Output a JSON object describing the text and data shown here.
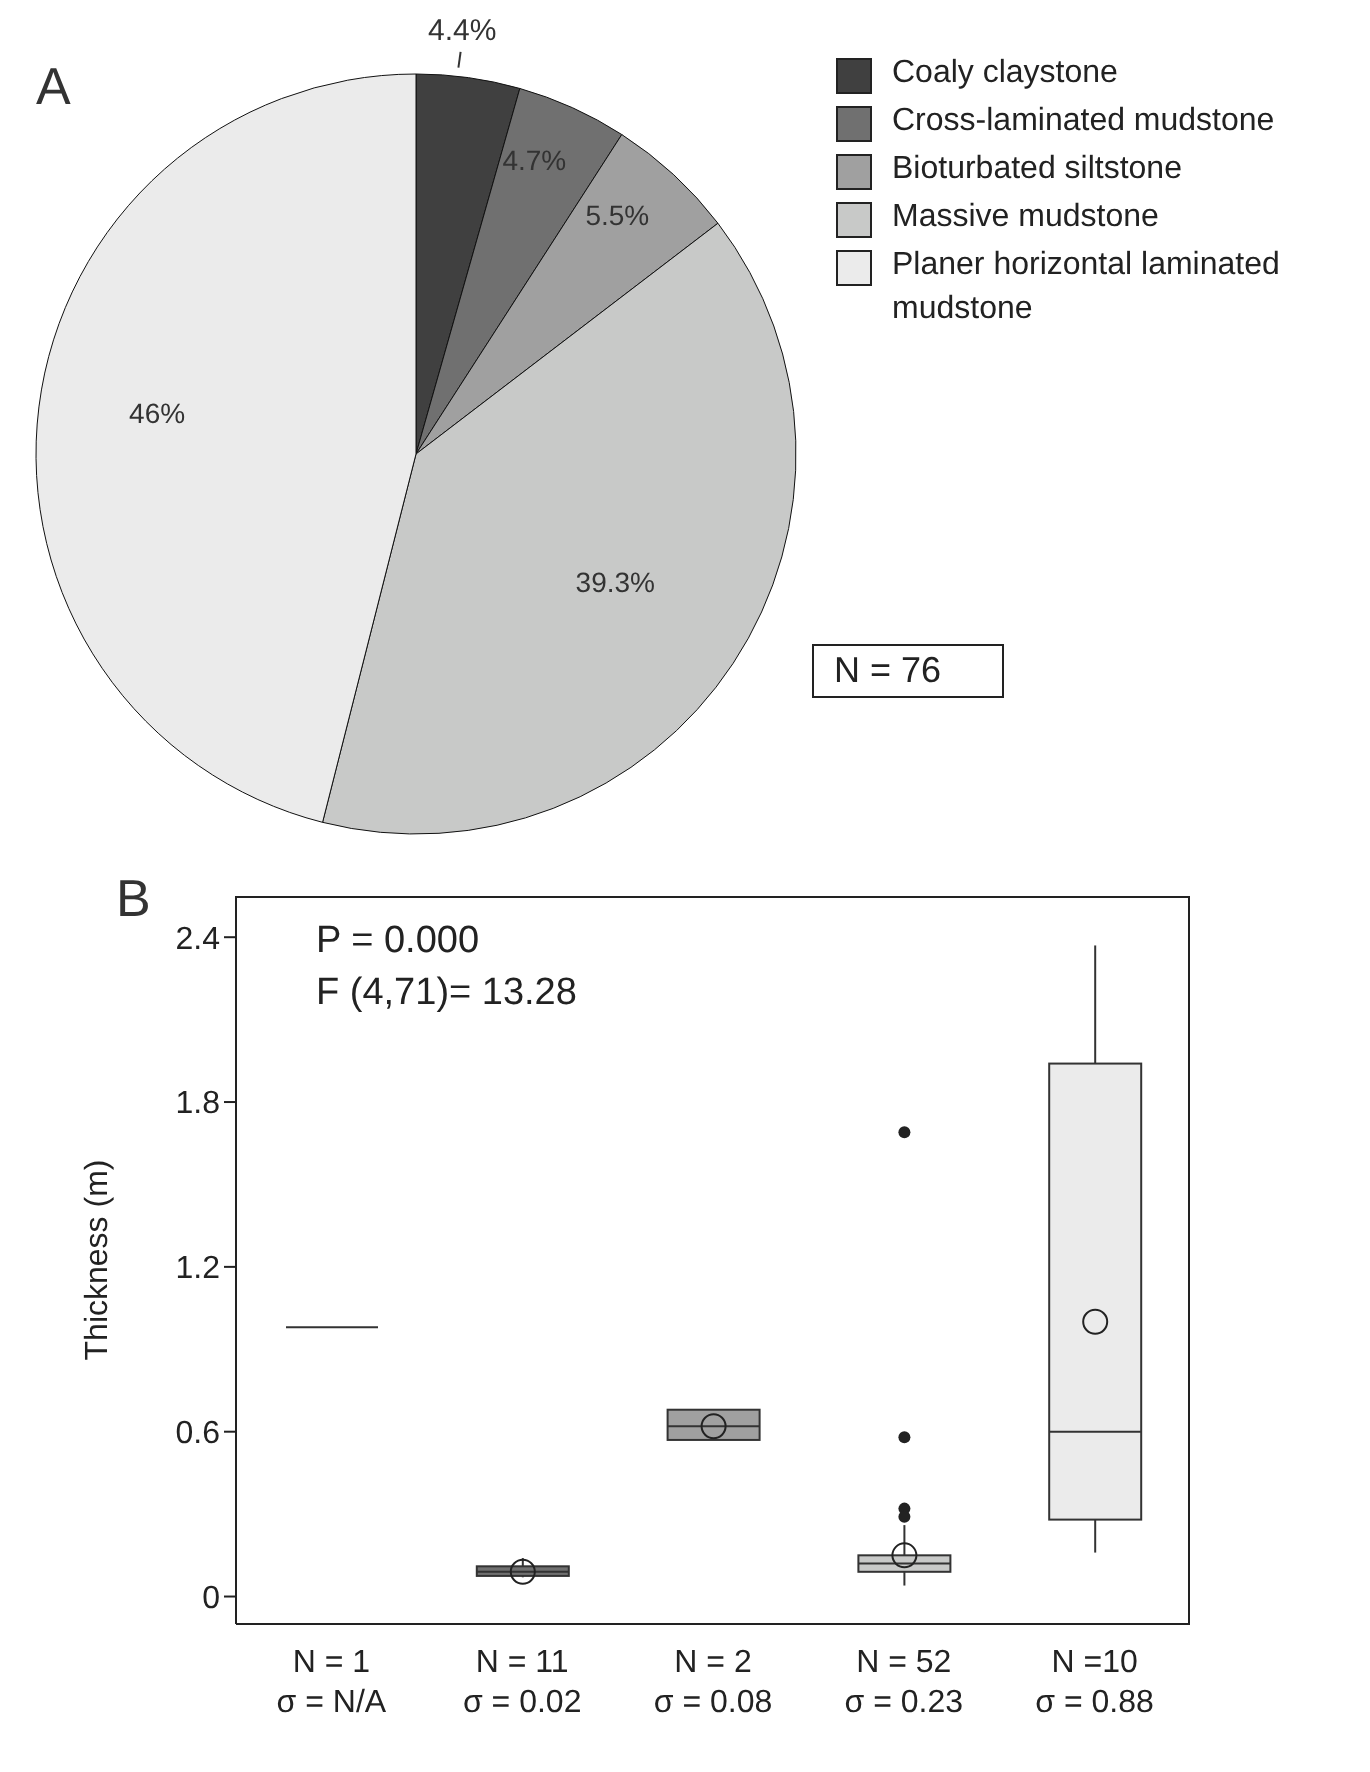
{
  "chart_data": [
    {
      "type": "pie",
      "title": "A",
      "categories": [
        "Coaly claystone",
        "Cross-laminated mudstone",
        "Bioturbated siltstone",
        "Massive mudstone",
        "Planer horizontal laminated mudstone"
      ],
      "values": [
        4.4,
        4.7,
        5.5,
        39.3,
        46
      ],
      "colors": [
        "#404040",
        "#707070",
        "#a0a0a0",
        "#c8c9c8",
        "#ebebeb"
      ],
      "value_labels": [
        "4.4%",
        "4.7%",
        "5.5%",
        "39.3%",
        "46%"
      ],
      "legend": "top right",
      "annotations": [
        "N = 76"
      ]
    },
    {
      "type": "box",
      "title": "B",
      "ylabel": "Thickness (m)",
      "categories": [
        "N = 1\nσ = N/A",
        "N = 11\nσ = 0.02",
        "N = 2\nσ = 0.08",
        "N = 52\nσ = 0.23",
        "N =10\nσ = 0.88"
      ],
      "colors": [
        "#404040",
        "#707070",
        "#a0a0a0",
        "#c8c9c8",
        "#ebebeb"
      ],
      "boxes": [
        {
          "low": 0.98,
          "q1": 0.98,
          "median": 0.98,
          "q3": 0.98,
          "high": 0.98
        },
        {
          "low": 0.07,
          "q1": 0.075,
          "median": 0.09,
          "q3": 0.11,
          "high": 0.14,
          "mean": 0.09
        },
        {
          "low": 0.57,
          "q1": 0.57,
          "median": 0.62,
          "q3": 0.68,
          "high": 0.68,
          "mean": 0.62
        },
        {
          "low": 0.04,
          "q1": 0.09,
          "median": 0.12,
          "q3": 0.15,
          "high": 0.26,
          "mean": 0.15,
          "outliers": [
            1.69,
            0.58,
            0.32,
            0.29
          ]
        },
        {
          "low": 0.16,
          "q1": 0.28,
          "median": 0.6,
          "q3": 1.94,
          "high": 2.37,
          "mean": 1.0
        }
      ],
      "ylim": [
        -0.1,
        2.55
      ],
      "yticks": [
        0,
        0.6,
        1.2,
        1.8,
        2.4
      ],
      "annotations": [
        "P = 0.000",
        "F (4,71)= 13.28"
      ]
    }
  ]
}
